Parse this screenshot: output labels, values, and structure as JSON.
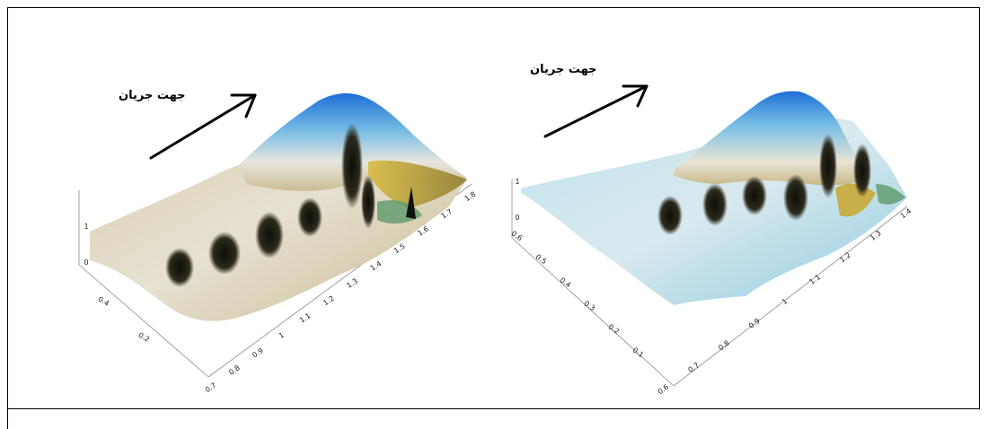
{
  "figures": [
    {
      "flow_label": "جهت جریان",
      "x_ticks": [
        "0.7",
        "0.8",
        "0.9",
        "1",
        "1.1",
        "1.2",
        "1.3",
        "1.4",
        "1.5",
        "1.6",
        "1.7",
        "1.8"
      ],
      "y_ticks": [
        "0.2",
        "0.4"
      ],
      "z_ticks": [
        "0",
        "1"
      ]
    },
    {
      "flow_label": "جهت جریان",
      "x_ticks": [
        "0.6",
        "0.7",
        "0.8",
        "0.9",
        "1",
        "1.1",
        "1.2",
        "1.3",
        "1.4"
      ],
      "y_ticks": [
        "0.1",
        "0.2",
        "0.3",
        "0.4",
        "0.5",
        "0.6"
      ],
      "z_ticks": [
        "0",
        "1"
      ]
    }
  ],
  "colors": {
    "peak_blue": "#1f6fd6",
    "surface_tan": "#c9b98a",
    "surface_light": "#e9e4d6",
    "surface_cyan": "#8ecbe0",
    "shadow_dark": "#1a1a12",
    "accent_yellow": "#c9a320",
    "accent_green": "#5f9a6a"
  }
}
